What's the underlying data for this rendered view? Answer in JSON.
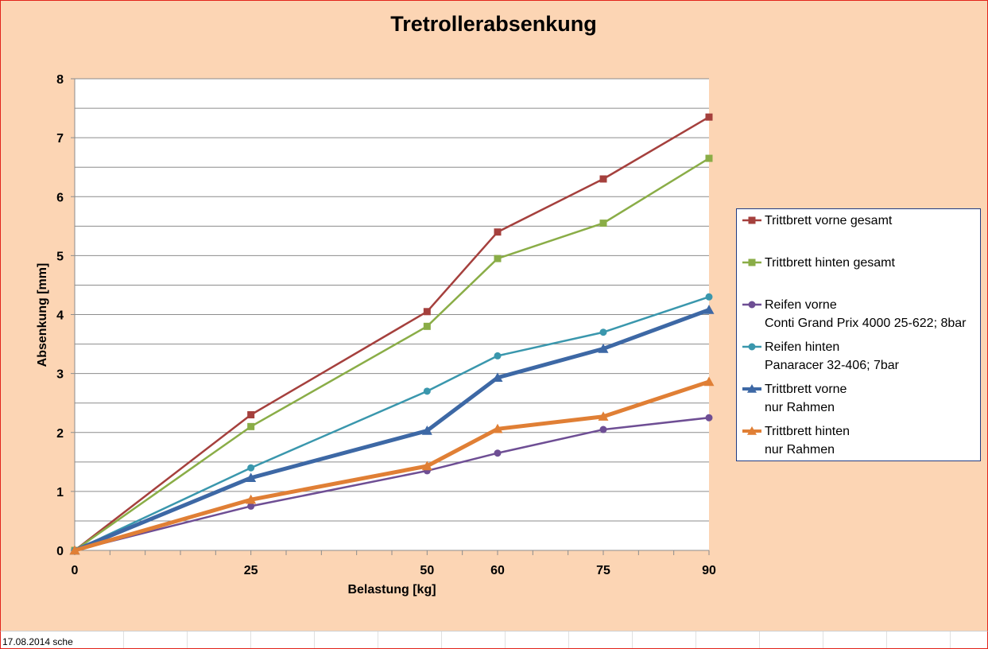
{
  "chart_data": {
    "type": "line",
    "title": "Tretrollerabsenkung",
    "xlabel": "Belastung [kg]",
    "ylabel": "Absenkung  [mm]",
    "x": [
      0,
      25,
      50,
      60,
      75,
      90
    ],
    "xticks": [
      "0",
      "25",
      "50",
      "60",
      "75",
      "90"
    ],
    "yticks": [
      "0",
      "1",
      "2",
      "3",
      "4",
      "5",
      "6",
      "7",
      "8"
    ],
    "xlim": [
      0,
      90
    ],
    "ylim": [
      0,
      8
    ],
    "grid": "horizontal",
    "legend_position": "right",
    "series": [
      {
        "name": "Trittbrett vorne gesamt",
        "name_line2": "",
        "color": "#a5403d",
        "marker": "square",
        "weight": "normal",
        "values": [
          0,
          2.3,
          4.05,
          5.4,
          6.3,
          7.35
        ]
      },
      {
        "name": "Trittbrett hinten gesamt",
        "name_line2": "",
        "color": "#8aad47",
        "marker": "square",
        "weight": "normal",
        "values": [
          0,
          2.1,
          3.8,
          4.95,
          5.55,
          6.65
        ]
      },
      {
        "name": "Reifen vorne",
        "name_line2": "Conti Grand Prix 4000 25-622; 8bar",
        "color": "#6e4e94",
        "marker": "circle",
        "weight": "normal",
        "values": [
          0,
          0.75,
          1.35,
          1.65,
          2.05,
          2.25
        ]
      },
      {
        "name": "Reifen hinten",
        "name_line2": "Panaracer 32-406; 7bar",
        "color": "#3a97ad",
        "marker": "circle",
        "weight": "normal",
        "values": [
          0,
          1.4,
          2.7,
          3.3,
          3.7,
          4.3
        ]
      },
      {
        "name": "Trittbrett vorne",
        "name_line2": "nur Rahmen",
        "color": "#3d68a5",
        "marker": "triangle",
        "weight": "bold",
        "values": [
          0,
          1.23,
          2.03,
          2.93,
          3.42,
          4.08
        ]
      },
      {
        "name": "Trittbrett hinten",
        "name_line2": "nur Rahmen",
        "color": "#e07f35",
        "marker": "triangle",
        "weight": "bold",
        "values": [
          0,
          0.86,
          1.43,
          2.06,
          2.27,
          2.86
        ]
      }
    ]
  },
  "footer": {
    "text": "17.08.2014 sche"
  }
}
